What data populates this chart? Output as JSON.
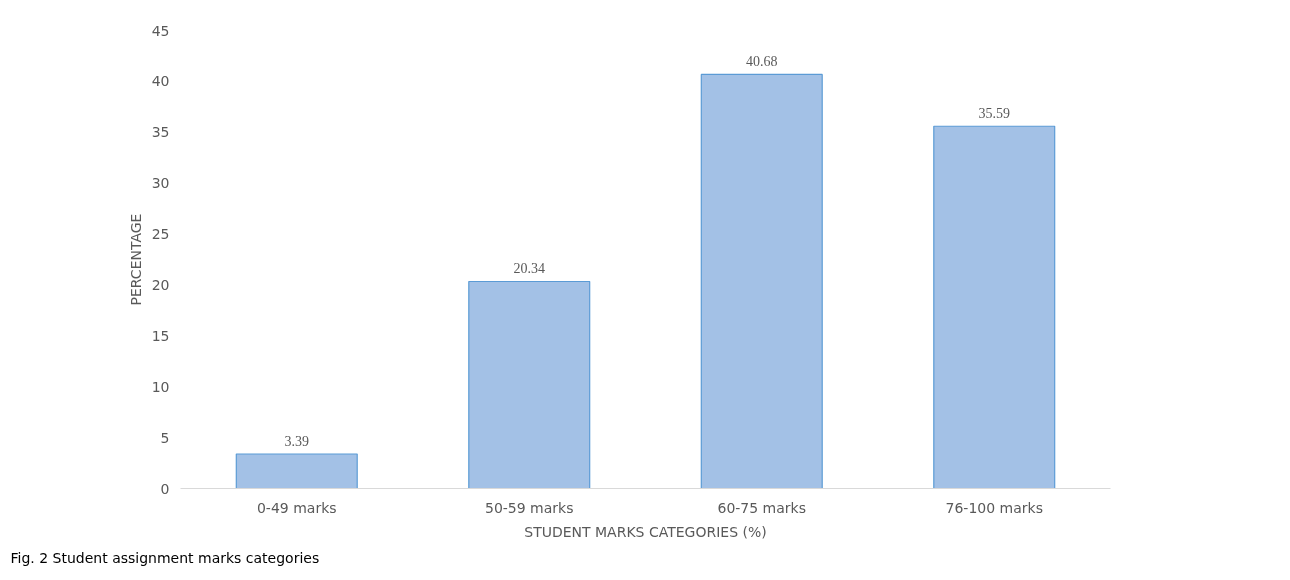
{
  "chart_data": {
    "type": "bar",
    "xlabel": "STUDENT MARKS CATEGORIES (%)",
    "ylabel": "PERCENTAGE",
    "categories": [
      "0-49 marks",
      "50-59 marks",
      "60-75 marks",
      "76-100 marks"
    ],
    "values": [
      3.39,
      20.34,
      40.68,
      35.59
    ],
    "color": "#a3c1e6",
    "ylim": [
      0,
      45
    ],
    "yticks": [
      0,
      5,
      10,
      15,
      20,
      25,
      30,
      35,
      40,
      45
    ],
    "grid": false,
    "data_labels": true,
    "annotations": [
      "Fig. 2 Student assignment marks categories"
    ]
  }
}
